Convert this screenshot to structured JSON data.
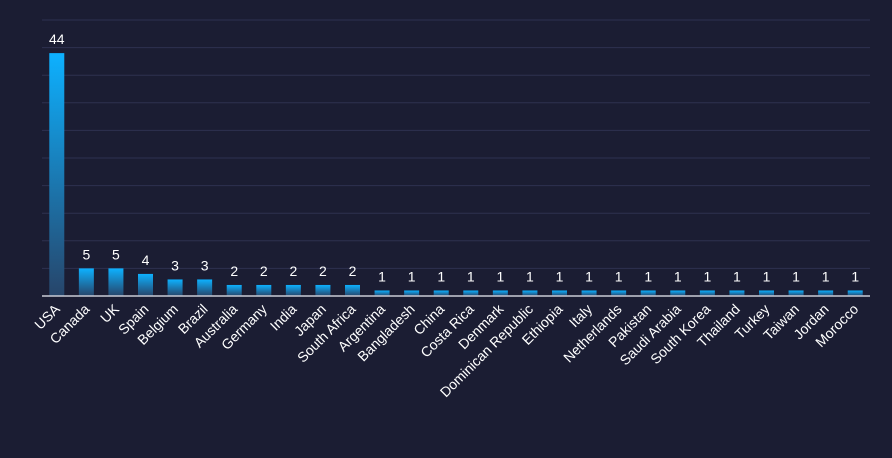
{
  "chart_data": {
    "type": "bar",
    "title": "",
    "xlabel": "",
    "ylabel": "",
    "ylim": [
      0,
      50
    ],
    "grid": true,
    "categories": [
      "USA",
      "Canada",
      "UK",
      "Spain",
      "Belgium",
      "Brazil",
      "Australia",
      "Germany",
      "India",
      "Japan",
      "South Africa",
      "Argentina",
      "Bangladesh",
      "China",
      "Costa Rica",
      "Denmark",
      "Dominican Republic",
      "Ethiopia",
      "Italy",
      "Netherlands",
      "Pakistan",
      "Saudi Arabia",
      "South Korea",
      "Thailand",
      "Turkey",
      "Taiwan",
      "Jordan",
      "Morocco"
    ],
    "values": [
      44,
      5,
      5,
      4,
      3,
      3,
      2,
      2,
      2,
      2,
      2,
      1,
      1,
      1,
      1,
      1,
      1,
      1,
      1,
      1,
      1,
      1,
      1,
      1,
      1,
      1,
      1,
      1
    ],
    "colors": {
      "background": "#1b1d33",
      "grid": "#2e3150",
      "axis": "#c9cbd6",
      "bar_top": "#0db1ff",
      "bar_bottom": "#27456a",
      "label": "#ffffff"
    }
  }
}
